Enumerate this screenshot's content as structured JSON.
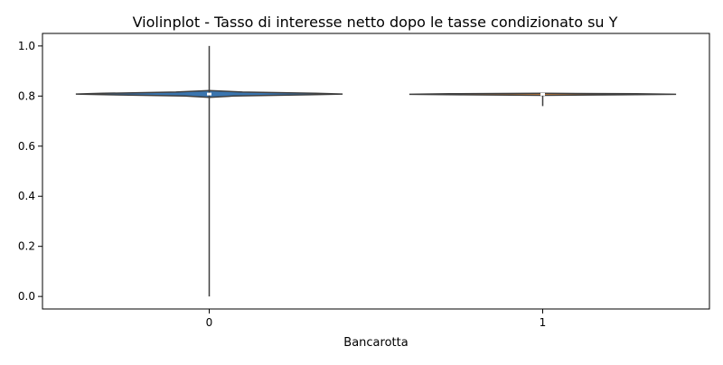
{
  "chart_data": {
    "type": "violin",
    "title": "Violinplot - Tasso di interesse netto dopo le tasse condizionato su Y",
    "xlabel": "Bancarotta",
    "ylabel": "",
    "categories": [
      "0",
      "1"
    ],
    "ylim": [
      -0.05,
      1.05
    ],
    "yticks": [
      0.0,
      0.2,
      0.4,
      0.6,
      0.8,
      1.0
    ],
    "ytick_labels": [
      "0.0",
      "0.2",
      "0.4",
      "0.6",
      "0.8",
      "1.0"
    ],
    "grid": false,
    "legend": "none",
    "colors": {
      "violin_0": "#3a75af",
      "violin_1": "#e08a3a",
      "edge": "#3f3f3f",
      "frame": "#000000"
    },
    "violins": [
      {
        "category": "0",
        "min": 0.0,
        "max": 1.0,
        "q1": 0.806,
        "median": 0.808,
        "q3": 0.81,
        "density": [
          [
            0.795,
            0.0
          ],
          [
            0.8,
            0.18
          ],
          [
            0.805,
            0.75
          ],
          [
            0.808,
            1.0
          ],
          [
            0.811,
            0.8
          ],
          [
            0.816,
            0.25
          ],
          [
            0.822,
            0.0
          ]
        ]
      },
      {
        "category": "1",
        "min": 0.76,
        "max": 0.81,
        "q1": 0.803,
        "median": 0.807,
        "q3": 0.809,
        "density": [
          [
            0.803,
            0.0
          ],
          [
            0.805,
            0.6
          ],
          [
            0.807,
            1.0
          ],
          [
            0.809,
            0.7
          ],
          [
            0.811,
            0.0
          ]
        ]
      }
    ]
  }
}
